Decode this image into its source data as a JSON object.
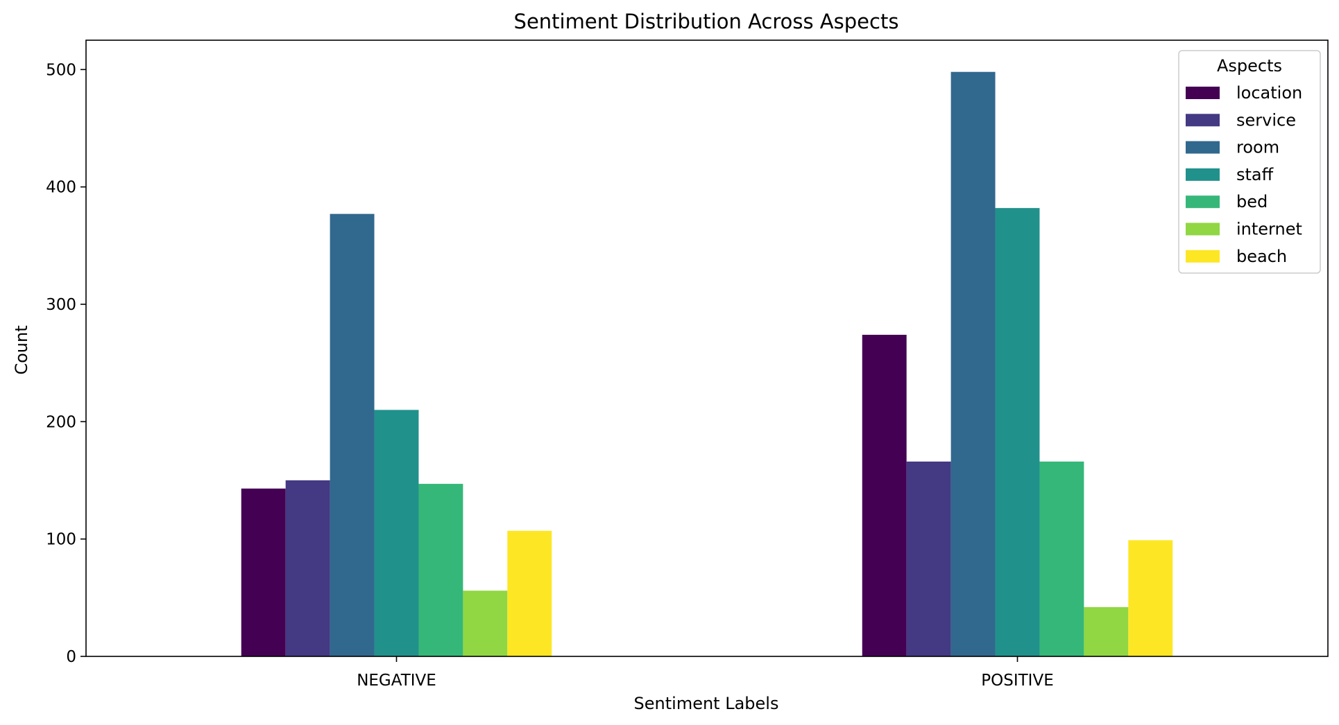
{
  "chart_data": {
    "type": "bar",
    "title": "Sentiment Distribution Across Aspects",
    "xlabel": "Sentiment Labels",
    "ylabel": "Count",
    "categories": [
      "NEGATIVE",
      "POSITIVE"
    ],
    "ylim": [
      0,
      525
    ],
    "yticks": [
      0,
      100,
      200,
      300,
      400,
      500
    ],
    "legend": {
      "title": "Aspects",
      "position": "top-right"
    },
    "grid": false,
    "series": [
      {
        "name": "location",
        "color": "#440154",
        "values": [
          143,
          274
        ]
      },
      {
        "name": "service",
        "color": "#443983",
        "values": [
          150,
          166
        ]
      },
      {
        "name": "room",
        "color": "#31688e",
        "values": [
          377,
          498
        ]
      },
      {
        "name": "staff",
        "color": "#21918c",
        "values": [
          210,
          382
        ]
      },
      {
        "name": "bed",
        "color": "#35b779",
        "values": [
          147,
          166
        ]
      },
      {
        "name": "internet",
        "color": "#90d743",
        "values": [
          56,
          42
        ]
      },
      {
        "name": "beach",
        "color": "#fde725",
        "values": [
          107,
          99
        ]
      }
    ]
  }
}
